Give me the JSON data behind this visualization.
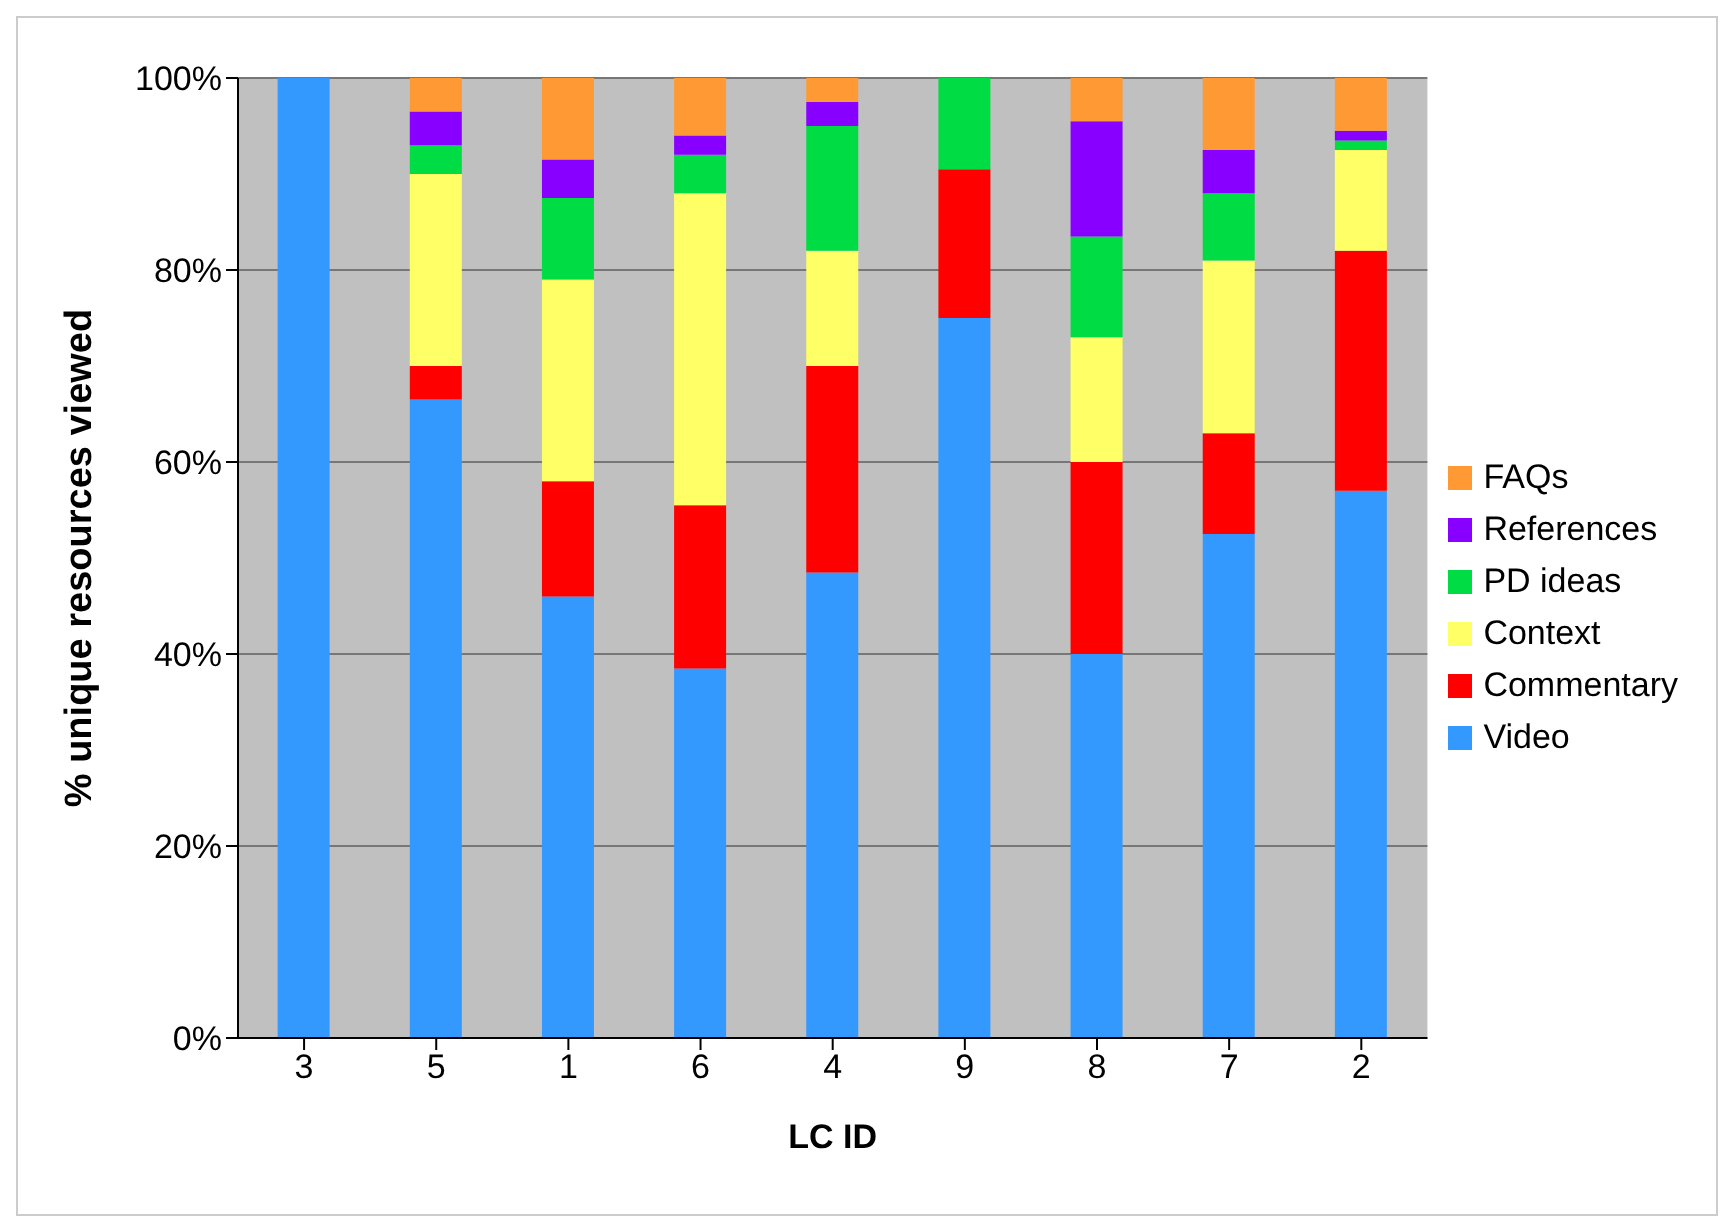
{
  "chart_data": {
    "type": "bar",
    "stacked": true,
    "xlabel": "LC  ID",
    "ylabel": "% unique resources viewed",
    "categories": [
      "3",
      "5",
      "1",
      "6",
      "4",
      "9",
      "8",
      "7",
      "2"
    ],
    "series": [
      {
        "name": "Video",
        "color": "#3399ff",
        "values": [
          100,
          66.5,
          46,
          38.5,
          48.5,
          75,
          40,
          52.5,
          57
        ]
      },
      {
        "name": "Commentary",
        "color": "#ff0000",
        "values": [
          0,
          3.5,
          12,
          17,
          21.5,
          15.5,
          20,
          10.5,
          25
        ]
      },
      {
        "name": "Context",
        "color": "#ffff66",
        "values": [
          0,
          20,
          21,
          32.5,
          12,
          0,
          13,
          18,
          10.5
        ]
      },
      {
        "name": "PD ideas",
        "color": "#00dd44",
        "values": [
          0,
          3,
          8.5,
          4,
          13,
          9.5,
          10.5,
          7,
          1
        ]
      },
      {
        "name": "References",
        "color": "#8800ff",
        "values": [
          0,
          3.5,
          4,
          2,
          2.5,
          0,
          12,
          4.5,
          1
        ]
      },
      {
        "name": "FAQs",
        "color": "#ff9933",
        "values": [
          0,
          3.5,
          8.5,
          6,
          2.5,
          0,
          4.5,
          7.5,
          5.5
        ]
      }
    ],
    "ylim": [
      0,
      100
    ],
    "yticks": [
      {
        "value": 0,
        "label": "0%"
      },
      {
        "value": 20,
        "label": "20%"
      },
      {
        "value": 40,
        "label": "40%"
      },
      {
        "value": 60,
        "label": "60%"
      },
      {
        "value": 80,
        "label": "80%"
      },
      {
        "value": 100,
        "label": "100%"
      }
    ],
    "grid": "y",
    "legend": "right"
  }
}
